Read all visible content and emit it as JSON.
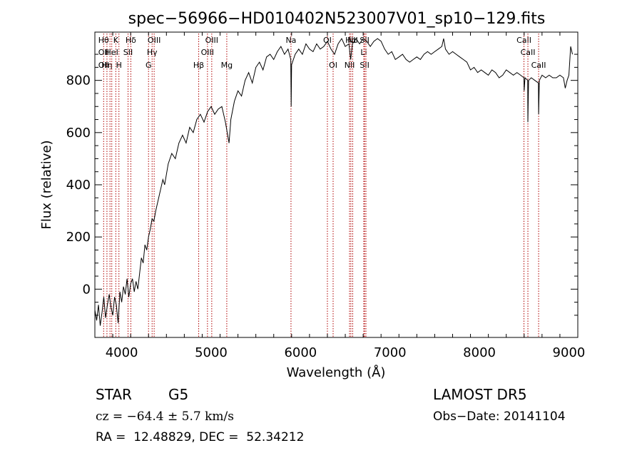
{
  "chart_data": {
    "type": "line",
    "title": "spec−56966−HD010402N523007V01_sp10−129.fits",
    "xlabel": "Wavelength (Å)",
    "ylabel": "Flux (relative)",
    "xlim": [
      3700,
      9100
    ],
    "ylim": [
      -185,
      985
    ],
    "xticks": [
      4000,
      5000,
      6000,
      7000,
      8000,
      9000
    ],
    "yticks": [
      0,
      200,
      400,
      600,
      800
    ],
    "grid": false,
    "series": [
      {
        "points": [
          [
            3700,
            -80
          ],
          [
            3720,
            -120
          ],
          [
            3740,
            -60
          ],
          [
            3760,
            -140
          ],
          [
            3780,
            -90
          ],
          [
            3800,
            -30
          ],
          [
            3820,
            -110
          ],
          [
            3840,
            -60
          ],
          [
            3860,
            -20
          ],
          [
            3880,
            -70
          ],
          [
            3900,
            -100
          ],
          [
            3920,
            -30
          ],
          [
            3940,
            -60
          ],
          [
            3960,
            -130
          ],
          [
            3980,
            -10
          ],
          [
            4000,
            -50
          ],
          [
            4020,
            10
          ],
          [
            4040,
            -20
          ],
          [
            4060,
            40
          ],
          [
            4080,
            -30
          ],
          [
            4100,
            20
          ],
          [
            4120,
            40
          ],
          [
            4140,
            -10
          ],
          [
            4160,
            30
          ],
          [
            4180,
            0
          ],
          [
            4200,
            60
          ],
          [
            4220,
            120
          ],
          [
            4240,
            100
          ],
          [
            4260,
            170
          ],
          [
            4280,
            150
          ],
          [
            4300,
            200
          ],
          [
            4320,
            230
          ],
          [
            4340,
            270
          ],
          [
            4360,
            260
          ],
          [
            4380,
            300
          ],
          [
            4400,
            330
          ],
          [
            4420,
            360
          ],
          [
            4440,
            390
          ],
          [
            4460,
            420
          ],
          [
            4480,
            400
          ],
          [
            4500,
            440
          ],
          [
            4520,
            480
          ],
          [
            4560,
            520
          ],
          [
            4600,
            500
          ],
          [
            4640,
            560
          ],
          [
            4680,
            590
          ],
          [
            4720,
            560
          ],
          [
            4760,
            620
          ],
          [
            4800,
            600
          ],
          [
            4840,
            650
          ],
          [
            4880,
            670
          ],
          [
            4920,
            640
          ],
          [
            4960,
            680
          ],
          [
            5000,
            700
          ],
          [
            5040,
            670
          ],
          [
            5080,
            690
          ],
          [
            5120,
            700
          ],
          [
            5160,
            640
          ],
          [
            5200,
            560
          ],
          [
            5220,
            650
          ],
          [
            5260,
            720
          ],
          [
            5300,
            760
          ],
          [
            5340,
            740
          ],
          [
            5380,
            800
          ],
          [
            5420,
            830
          ],
          [
            5460,
            790
          ],
          [
            5500,
            850
          ],
          [
            5540,
            870
          ],
          [
            5580,
            840
          ],
          [
            5620,
            890
          ],
          [
            5660,
            900
          ],
          [
            5700,
            880
          ],
          [
            5740,
            910
          ],
          [
            5780,
            930
          ],
          [
            5820,
            900
          ],
          [
            5860,
            920
          ],
          [
            5890,
            880
          ],
          [
            5895,
            700
          ],
          [
            5900,
            860
          ],
          [
            5940,
            900
          ],
          [
            5980,
            920
          ],
          [
            6020,
            900
          ],
          [
            6060,
            940
          ],
          [
            6100,
            920
          ],
          [
            6140,
            910
          ],
          [
            6180,
            940
          ],
          [
            6220,
            920
          ],
          [
            6260,
            930
          ],
          [
            6300,
            950
          ],
          [
            6340,
            920
          ],
          [
            6380,
            900
          ],
          [
            6420,
            940
          ],
          [
            6460,
            960
          ],
          [
            6500,
            930
          ],
          [
            6540,
            940
          ],
          [
            6560,
            880
          ],
          [
            6580,
            940
          ],
          [
            6620,
            960
          ],
          [
            6660,
            940
          ],
          [
            6700,
            960
          ],
          [
            6740,
            950
          ],
          [
            6780,
            930
          ],
          [
            6820,
            950
          ],
          [
            6860,
            960
          ],
          [
            6900,
            950
          ],
          [
            6940,
            920
          ],
          [
            6980,
            900
          ],
          [
            7020,
            910
          ],
          [
            7060,
            880
          ],
          [
            7100,
            890
          ],
          [
            7140,
            900
          ],
          [
            7180,
            880
          ],
          [
            7220,
            870
          ],
          [
            7260,
            880
          ],
          [
            7300,
            890
          ],
          [
            7340,
            880
          ],
          [
            7380,
            900
          ],
          [
            7420,
            910
          ],
          [
            7460,
            900
          ],
          [
            7500,
            910
          ],
          [
            7540,
            920
          ],
          [
            7580,
            930
          ],
          [
            7600,
            960
          ],
          [
            7620,
            920
          ],
          [
            7660,
            900
          ],
          [
            7700,
            910
          ],
          [
            7740,
            900
          ],
          [
            7780,
            890
          ],
          [
            7820,
            880
          ],
          [
            7860,
            870
          ],
          [
            7900,
            840
          ],
          [
            7940,
            850
          ],
          [
            7980,
            830
          ],
          [
            8020,
            840
          ],
          [
            8060,
            830
          ],
          [
            8100,
            820
          ],
          [
            8140,
            840
          ],
          [
            8180,
            830
          ],
          [
            8220,
            810
          ],
          [
            8260,
            820
          ],
          [
            8300,
            840
          ],
          [
            8340,
            830
          ],
          [
            8380,
            820
          ],
          [
            8420,
            830
          ],
          [
            8460,
            820
          ],
          [
            8498,
            810
          ],
          [
            8500,
            760
          ],
          [
            8510,
            810
          ],
          [
            8540,
            800
          ],
          [
            8542,
            640
          ],
          [
            8550,
            800
          ],
          [
            8580,
            810
          ],
          [
            8620,
            800
          ],
          [
            8660,
            790
          ],
          [
            8662,
            670
          ],
          [
            8670,
            800
          ],
          [
            8700,
            820
          ],
          [
            8740,
            810
          ],
          [
            8780,
            820
          ],
          [
            8820,
            810
          ],
          [
            8860,
            810
          ],
          [
            8900,
            820
          ],
          [
            8940,
            810
          ],
          [
            8960,
            770
          ],
          [
            8980,
            800
          ],
          [
            9000,
            820
          ],
          [
            9020,
            930
          ],
          [
            9040,
            900
          ]
        ]
      }
    ],
    "lines": [
      {
        "x": 3798,
        "labels": [
          "Hθ",
          "OII",
          "OII"
        ]
      },
      {
        "x": 3835,
        "labels": [
          "",
          "",
          "Hη"
        ]
      },
      {
        "x": 3869,
        "labels": [
          "",
          "",
          ""
        ]
      },
      {
        "x": 3889,
        "labels": [
          "",
          "HeI",
          ""
        ]
      },
      {
        "x": 3934,
        "labels": [
          "K",
          "",
          ""
        ]
      },
      {
        "x": 3969,
        "labels": [
          "",
          "",
          "H"
        ]
      },
      {
        "x": 4071,
        "labels": [
          "",
          "SII",
          ""
        ]
      },
      {
        "x": 4102,
        "labels": [
          "Hδ",
          "",
          ""
        ]
      },
      {
        "x": 4300,
        "labels": [
          "",
          "",
          "G"
        ]
      },
      {
        "x": 4340,
        "labels": [
          "",
          "Hγ",
          ""
        ]
      },
      {
        "x": 4363,
        "labels": [
          "OIII",
          "",
          ""
        ]
      },
      {
        "x": 4861,
        "labels": [
          "",
          "",
          "Hβ"
        ]
      },
      {
        "x": 4959,
        "labels": [
          "",
          "OIII",
          ""
        ]
      },
      {
        "x": 5007,
        "labels": [
          "OIII",
          "",
          ""
        ]
      },
      {
        "x": 5175,
        "labels": [
          "",
          "",
          "Mg"
        ]
      },
      {
        "x": 5893,
        "labels": [
          "Na",
          "",
          ""
        ]
      },
      {
        "x": 6300,
        "labels": [
          "OI",
          "",
          ""
        ]
      },
      {
        "x": 6364,
        "labels": [
          "",
          "",
          "OI"
        ]
      },
      {
        "x": 6548,
        "labels": [
          "",
          "",
          "NII"
        ]
      },
      {
        "x": 6563,
        "labels": [
          "Hα",
          "",
          ""
        ]
      },
      {
        "x": 6583,
        "labels": [
          "NII",
          "",
          ""
        ]
      },
      {
        "x": 6707,
        "labels": [
          "",
          "Li",
          ""
        ]
      },
      {
        "x": 6716,
        "labels": [
          "SII",
          "",
          "SII"
        ]
      },
      {
        "x": 6731,
        "labels": [
          "",
          "",
          ""
        ]
      },
      {
        "x": 8498,
        "labels": [
          "CaII",
          "",
          ""
        ]
      },
      {
        "x": 8542,
        "labels": [
          "",
          "CaII",
          ""
        ]
      },
      {
        "x": 8662,
        "labels": [
          "",
          "",
          "CaII"
        ]
      }
    ]
  },
  "info": {
    "class": "STAR",
    "subclass": "G5",
    "survey": "LAMOST DR5",
    "cz": "cz = −64.4 ± 5.7 km/s",
    "obs_date": "Obs−Date: 20141104",
    "radec": "RA =  12.48829, DEC =  52.34212"
  }
}
